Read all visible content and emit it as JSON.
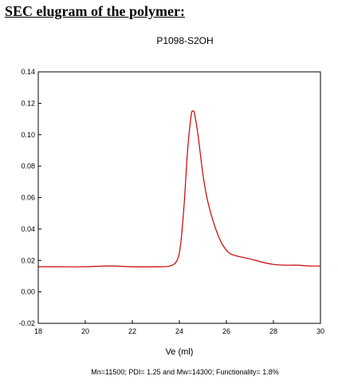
{
  "page": {
    "heading": "SEC elugram of the polymer:",
    "footnote": "Mn=11500; PDI= 1.25 and Mw=14300; Functionality= 1.8%"
  },
  "chart_data": {
    "type": "line",
    "title": "P1098-S2OH",
    "xlabel": "Ve (ml)",
    "ylabel": "",
    "xlim": [
      18,
      30
    ],
    "ylim": [
      -0.02,
      0.14
    ],
    "xticks": [
      18,
      20,
      22,
      24,
      26,
      28,
      30
    ],
    "yticks": [
      -0.02,
      0.0,
      0.02,
      0.04,
      0.06,
      0.08,
      0.1,
      0.12,
      0.14
    ],
    "ytick_labels": [
      "-0.02",
      "0.00",
      "0.02",
      "0.04",
      "0.06",
      "0.08",
      "0.10",
      "0.12",
      "0.14"
    ],
    "grid": false,
    "legend": false,
    "line_color": "#cc0000",
    "series": [
      {
        "x": [
          18.0,
          19.0,
          20.0,
          21.0,
          22.0,
          23.0,
          23.6,
          23.9,
          24.05,
          24.2,
          24.35,
          24.5,
          24.58,
          24.65,
          24.8,
          25.0,
          25.2,
          25.5,
          25.8,
          26.1,
          26.4,
          27.0,
          27.5,
          28.0,
          28.5,
          29.0,
          29.5,
          30.0
        ],
        "y": [
          0.016,
          0.016,
          0.016,
          0.0165,
          0.016,
          0.016,
          0.0165,
          0.02,
          0.03,
          0.055,
          0.09,
          0.112,
          0.115,
          0.113,
          0.099,
          0.075,
          0.058,
          0.042,
          0.031,
          0.025,
          0.023,
          0.021,
          0.019,
          0.0175,
          0.017,
          0.017,
          0.0165,
          0.0165
        ]
      }
    ]
  }
}
